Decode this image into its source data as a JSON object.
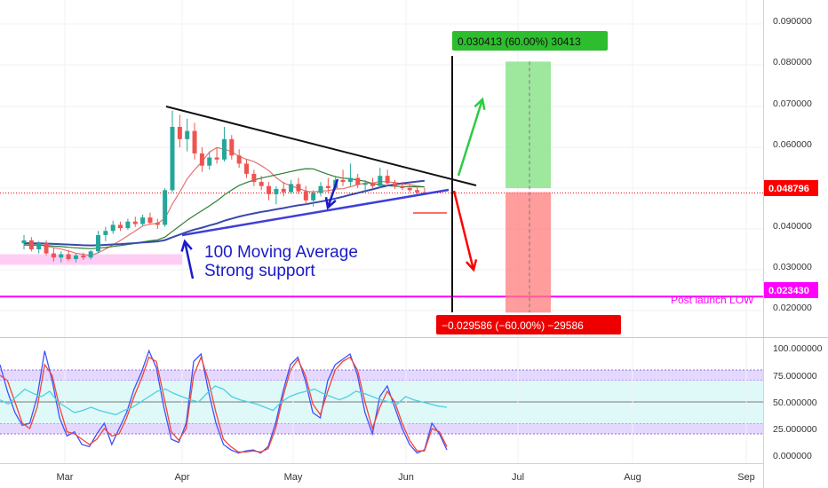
{
  "chart_data": [
    {
      "type": "candlestick",
      "title": "",
      "x_ticks": [
        "Mar",
        "Apr",
        "May",
        "Jun",
        "Jul",
        "Aug",
        "Sep"
      ],
      "y_ticks": [
        "0.090000",
        "0.080000",
        "0.070000",
        "0.060000",
        "0.040000",
        "0.030000",
        "0.020000"
      ],
      "ylim": [
        0.0179,
        0.0944
      ],
      "current_price": {
        "label": "0.048796",
        "value": 0.048796,
        "color": "#ff0000"
      },
      "support_line": {
        "label": "0.023430",
        "value": 0.02343,
        "color": "#ff00ff",
        "caption": "Post launch LOW"
      },
      "grid": true,
      "long_target": {
        "text": "0.030413 (60.00%) 30413",
        "top": 0.081,
        "entry": 0.05
      },
      "short_target": {
        "text": "−0.029586 (−60.00%) −29586",
        "bottom": 0.0195,
        "entry": 0.049
      },
      "annotation": [
        "100 Moving Average",
        "Strong support"
      ],
      "candles": [
        {
          "t": "Feb-21",
          "o": 0.0365,
          "h": 0.0385,
          "l": 0.035,
          "c": 0.0372
        },
        {
          "t": "Feb-23",
          "o": 0.0372,
          "h": 0.038,
          "l": 0.0345,
          "c": 0.035
        },
        {
          "t": "Feb-25",
          "o": 0.035,
          "h": 0.037,
          "l": 0.034,
          "c": 0.0365
        },
        {
          "t": "Feb-27",
          "o": 0.0365,
          "h": 0.0372,
          "l": 0.0335,
          "c": 0.034
        },
        {
          "t": "Mar-01",
          "o": 0.034,
          "h": 0.0355,
          "l": 0.032,
          "c": 0.033
        },
        {
          "t": "Mar-03",
          "o": 0.033,
          "h": 0.0345,
          "l": 0.0318,
          "c": 0.0338
        },
        {
          "t": "Mar-05",
          "o": 0.0338,
          "h": 0.0348,
          "l": 0.0322,
          "c": 0.0326
        },
        {
          "t": "Mar-07",
          "o": 0.0326,
          "h": 0.034,
          "l": 0.0318,
          "c": 0.0335
        },
        {
          "t": "Mar-09",
          "o": 0.0335,
          "h": 0.0342,
          "l": 0.0324,
          "c": 0.033
        },
        {
          "t": "Mar-11",
          "o": 0.033,
          "h": 0.0348,
          "l": 0.0325,
          "c": 0.0345
        },
        {
          "t": "Mar-13",
          "o": 0.0345,
          "h": 0.0395,
          "l": 0.034,
          "c": 0.0385
        },
        {
          "t": "Mar-15",
          "o": 0.0385,
          "h": 0.0405,
          "l": 0.037,
          "c": 0.0395
        },
        {
          "t": "Mar-17",
          "o": 0.0395,
          "h": 0.042,
          "l": 0.0388,
          "c": 0.041
        },
        {
          "t": "Mar-19",
          "o": 0.041,
          "h": 0.0418,
          "l": 0.0395,
          "c": 0.0402
        },
        {
          "t": "Mar-21",
          "o": 0.0402,
          "h": 0.0425,
          "l": 0.0398,
          "c": 0.0418
        },
        {
          "t": "Mar-23",
          "o": 0.0418,
          "h": 0.043,
          "l": 0.0405,
          "c": 0.0412
        },
        {
          "t": "Mar-25",
          "o": 0.0412,
          "h": 0.0435,
          "l": 0.0408,
          "c": 0.0428
        },
        {
          "t": "Mar-27",
          "o": 0.0428,
          "h": 0.044,
          "l": 0.041,
          "c": 0.0415
        },
        {
          "t": "Mar-29",
          "o": 0.0415,
          "h": 0.0425,
          "l": 0.04,
          "c": 0.041
        },
        {
          "t": "Mar-31",
          "o": 0.041,
          "h": 0.05,
          "l": 0.0405,
          "c": 0.0495
        },
        {
          "t": "Apr-02",
          "o": 0.0495,
          "h": 0.069,
          "l": 0.049,
          "c": 0.065
        },
        {
          "t": "Apr-04",
          "o": 0.065,
          "h": 0.068,
          "l": 0.06,
          "c": 0.062
        },
        {
          "t": "Apr-06",
          "o": 0.062,
          "h": 0.067,
          "l": 0.059,
          "c": 0.064
        },
        {
          "t": "Apr-08",
          "o": 0.064,
          "h": 0.066,
          "l": 0.057,
          "c": 0.0585
        },
        {
          "t": "Apr-10",
          "o": 0.0585,
          "h": 0.06,
          "l": 0.054,
          "c": 0.0555
        },
        {
          "t": "Apr-12",
          "o": 0.0555,
          "h": 0.059,
          "l": 0.0545,
          "c": 0.0575
        },
        {
          "t": "Apr-14",
          "o": 0.0575,
          "h": 0.06,
          "l": 0.056,
          "c": 0.057
        },
        {
          "t": "Apr-16",
          "o": 0.057,
          "h": 0.065,
          "l": 0.0565,
          "c": 0.062
        },
        {
          "t": "Apr-18",
          "o": 0.062,
          "h": 0.063,
          "l": 0.057,
          "c": 0.058
        },
        {
          "t": "Apr-20",
          "o": 0.058,
          "h": 0.0595,
          "l": 0.055,
          "c": 0.056
        },
        {
          "t": "Apr-22",
          "o": 0.056,
          "h": 0.057,
          "l": 0.0525,
          "c": 0.0535
        },
        {
          "t": "Apr-24",
          "o": 0.0535,
          "h": 0.0545,
          "l": 0.0505,
          "c": 0.0515
        },
        {
          "t": "Apr-26",
          "o": 0.0515,
          "h": 0.053,
          "l": 0.0495,
          "c": 0.0505
        },
        {
          "t": "Apr-28",
          "o": 0.0505,
          "h": 0.0515,
          "l": 0.047,
          "c": 0.0485
        },
        {
          "t": "Apr-30",
          "o": 0.0485,
          "h": 0.0505,
          "l": 0.046,
          "c": 0.0498
        },
        {
          "t": "May-02",
          "o": 0.0498,
          "h": 0.0515,
          "l": 0.048,
          "c": 0.049
        },
        {
          "t": "May-04",
          "o": 0.049,
          "h": 0.052,
          "l": 0.0485,
          "c": 0.051
        },
        {
          "t": "May-06",
          "o": 0.051,
          "h": 0.0525,
          "l": 0.0485,
          "c": 0.0492
        },
        {
          "t": "May-08",
          "o": 0.0492,
          "h": 0.0505,
          "l": 0.046,
          "c": 0.047
        },
        {
          "t": "May-10",
          "o": 0.047,
          "h": 0.0495,
          "l": 0.0455,
          "c": 0.0488
        },
        {
          "t": "May-12",
          "o": 0.0488,
          "h": 0.0515,
          "l": 0.048,
          "c": 0.0505
        },
        {
          "t": "May-14",
          "o": 0.0505,
          "h": 0.0525,
          "l": 0.049,
          "c": 0.05
        },
        {
          "t": "May-16",
          "o": 0.05,
          "h": 0.053,
          "l": 0.0495,
          "c": 0.052
        },
        {
          "t": "May-18",
          "o": 0.052,
          "h": 0.0545,
          "l": 0.0505,
          "c": 0.0515
        },
        {
          "t": "May-20",
          "o": 0.0515,
          "h": 0.056,
          "l": 0.0505,
          "c": 0.0525
        },
        {
          "t": "May-22",
          "o": 0.0525,
          "h": 0.0535,
          "l": 0.05,
          "c": 0.0508
        },
        {
          "t": "May-24",
          "o": 0.0508,
          "h": 0.052,
          "l": 0.0495,
          "c": 0.0512
        },
        {
          "t": "May-26",
          "o": 0.0512,
          "h": 0.0525,
          "l": 0.05,
          "c": 0.0505
        },
        {
          "t": "May-28",
          "o": 0.0505,
          "h": 0.055,
          "l": 0.05,
          "c": 0.053
        },
        {
          "t": "May-30",
          "o": 0.053,
          "h": 0.0545,
          "l": 0.0505,
          "c": 0.0512
        },
        {
          "t": "Jun-01",
          "o": 0.0512,
          "h": 0.052,
          "l": 0.0498,
          "c": 0.0505
        },
        {
          "t": "Jun-03",
          "o": 0.0505,
          "h": 0.0515,
          "l": 0.0495,
          "c": 0.05
        },
        {
          "t": "Jun-05",
          "o": 0.05,
          "h": 0.051,
          "l": 0.049,
          "c": 0.0495
        },
        {
          "t": "Jun-07",
          "o": 0.0495,
          "h": 0.0505,
          "l": 0.0485,
          "c": 0.049
        },
        {
          "t": "Jun-09",
          "o": 0.049,
          "h": 0.05,
          "l": 0.0485,
          "c": 0.0488
        }
      ]
    },
    {
      "type": "line",
      "title": "",
      "y_ticks": [
        "100.000000",
        "75.000000",
        "50.000000",
        "25.000000",
        "0.000000"
      ],
      "ylim": [
        -3,
        103
      ],
      "bands": [
        [
          70,
          80
        ],
        [
          20,
          30
        ]
      ],
      "series": [
        {
          "color": "#3f51ff",
          "values": [
            85,
            60,
            40,
            28,
            30,
            55,
            98,
            70,
            35,
            18,
            22,
            10,
            8,
            20,
            30,
            10,
            25,
            40,
            62,
            78,
            98,
            82,
            45,
            15,
            12,
            30,
            88,
            95,
            60,
            30,
            10,
            5,
            2,
            4,
            5,
            2,
            8,
            30,
            60,
            85,
            92,
            70,
            40,
            35,
            70,
            85,
            90,
            95,
            75,
            40,
            20,
            55,
            65,
            45,
            25,
            10,
            2,
            5,
            30,
            20,
            5
          ]
        },
        {
          "color": "#f44336",
          "values": [
            75,
            70,
            50,
            30,
            25,
            45,
            85,
            75,
            45,
            22,
            20,
            15,
            10,
            15,
            25,
            18,
            20,
            35,
            55,
            72,
            92,
            88,
            55,
            22,
            14,
            25,
            75,
            92,
            70,
            40,
            15,
            8,
            3,
            3,
            4,
            3,
            6,
            25,
            55,
            80,
            90,
            75,
            48,
            38,
            60,
            80,
            88,
            92,
            80,
            50,
            25,
            45,
            60,
            50,
            30,
            14,
            4,
            4,
            25,
            22,
            8
          ]
        },
        {
          "color": "#4dd0e1",
          "values": [
            52,
            48,
            55,
            62,
            58,
            55,
            60,
            50,
            45,
            40,
            42,
            45,
            42,
            40,
            38,
            42,
            45,
            50,
            55,
            60,
            62,
            58,
            55,
            52,
            50,
            58,
            65,
            62,
            55,
            52,
            50,
            48,
            45,
            42,
            50,
            55,
            58,
            60,
            62,
            58,
            55,
            52,
            55,
            60,
            58,
            55,
            52,
            50,
            48,
            55,
            52,
            50,
            48,
            46,
            45
          ]
        }
      ]
    }
  ]
}
